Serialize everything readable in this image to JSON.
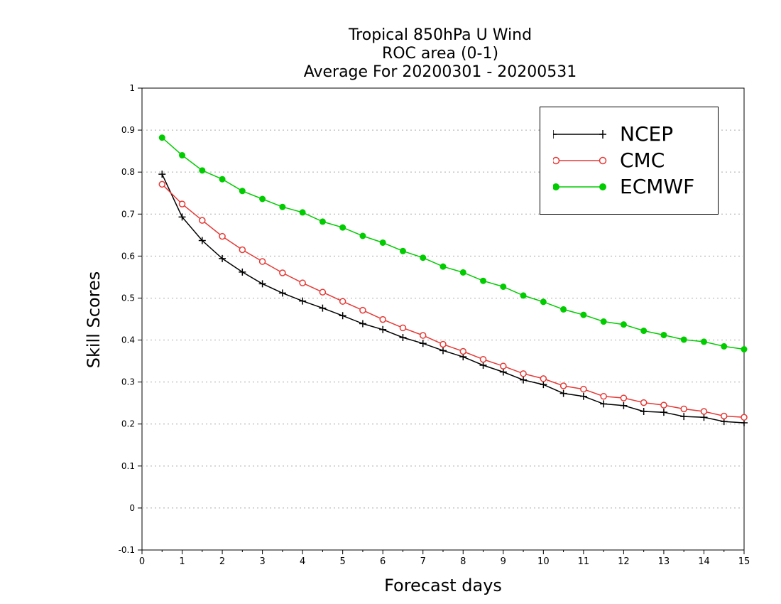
{
  "chart_data": {
    "type": "line",
    "title_lines": [
      "Tropical 850hPa U Wind",
      "ROC area (0-1)",
      "Average For 20200301 - 20200531"
    ],
    "xlabel": "Forecast days",
    "ylabel": "Skill Scores",
    "xlim": [
      0,
      15
    ],
    "ylim": [
      -0.1,
      1
    ],
    "xticks": [
      "0",
      "1",
      "2",
      "3",
      "4",
      "5",
      "6",
      "7",
      "8",
      "9",
      "10",
      "11",
      "12",
      "13",
      "14",
      "15"
    ],
    "yticks": [
      "-0.1",
      "0",
      "0.1",
      "0.2",
      "0.3",
      "0.4",
      "0.5",
      "0.6",
      "0.7",
      "0.8",
      "0.9",
      "1"
    ],
    "grid": true,
    "legend_position": "top-right",
    "x": [
      0.5,
      1,
      1.5,
      2,
      2.5,
      3,
      3.5,
      4,
      4.5,
      5,
      5.5,
      6,
      6.5,
      7,
      7.5,
      8,
      8.5,
      9,
      9.5,
      10,
      10.5,
      11,
      11.5,
      12,
      12.5,
      13,
      13.5,
      14,
      14.5,
      15
    ],
    "series": [
      {
        "name": "NCEP",
        "color": "#000000",
        "marker": "plus",
        "values": [
          0.795,
          0.693,
          0.637,
          0.594,
          0.562,
          0.534,
          0.512,
          0.493,
          0.476,
          0.458,
          0.439,
          0.425,
          0.406,
          0.392,
          0.375,
          0.36,
          0.34,
          0.324,
          0.305,
          0.294,
          0.273,
          0.266,
          0.248,
          0.244,
          0.23,
          0.228,
          0.218,
          0.216,
          0.206,
          0.203
        ]
      },
      {
        "name": "CMC",
        "color": "#e53935",
        "marker": "open-circle",
        "values": [
          0.771,
          0.724,
          0.685,
          0.647,
          0.615,
          0.587,
          0.56,
          0.536,
          0.514,
          0.492,
          0.471,
          0.449,
          0.429,
          0.411,
          0.39,
          0.373,
          0.354,
          0.338,
          0.32,
          0.308,
          0.291,
          0.283,
          0.266,
          0.262,
          0.251,
          0.245,
          0.236,
          0.23,
          0.219,
          0.216
        ]
      },
      {
        "name": "ECMWF",
        "color": "#00cc00",
        "marker": "filled-circle",
        "values": [
          0.882,
          0.84,
          0.804,
          0.783,
          0.755,
          0.736,
          0.717,
          0.704,
          0.682,
          0.668,
          0.648,
          0.632,
          0.612,
          0.596,
          0.575,
          0.561,
          0.541,
          0.527,
          0.506,
          0.491,
          0.473,
          0.46,
          0.444,
          0.437,
          0.422,
          0.412,
          0.401,
          0.396,
          0.385,
          0.378
        ]
      }
    ]
  }
}
